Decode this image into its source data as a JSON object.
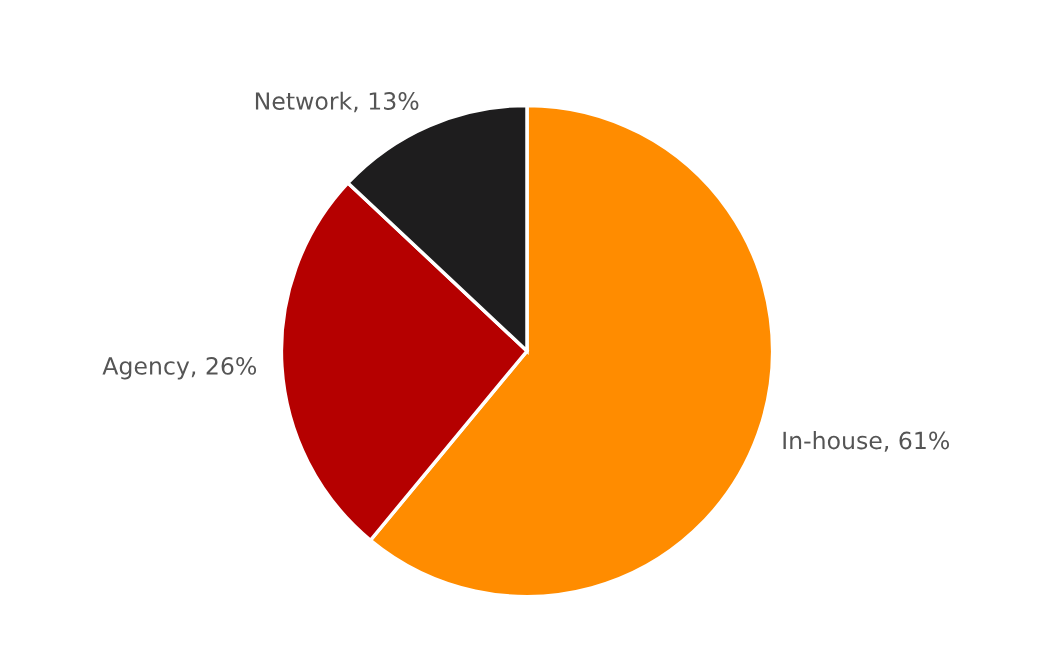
{
  "chart_data": {
    "type": "pie",
    "categories": [
      "In-house",
      "Agency",
      "Network"
    ],
    "values": [
      61,
      26,
      13
    ],
    "colors": [
      "#ff8c00",
      "#b50000",
      "#1e1d1e"
    ],
    "value_labels": [
      "61%",
      "26%",
      "13%"
    ]
  }
}
